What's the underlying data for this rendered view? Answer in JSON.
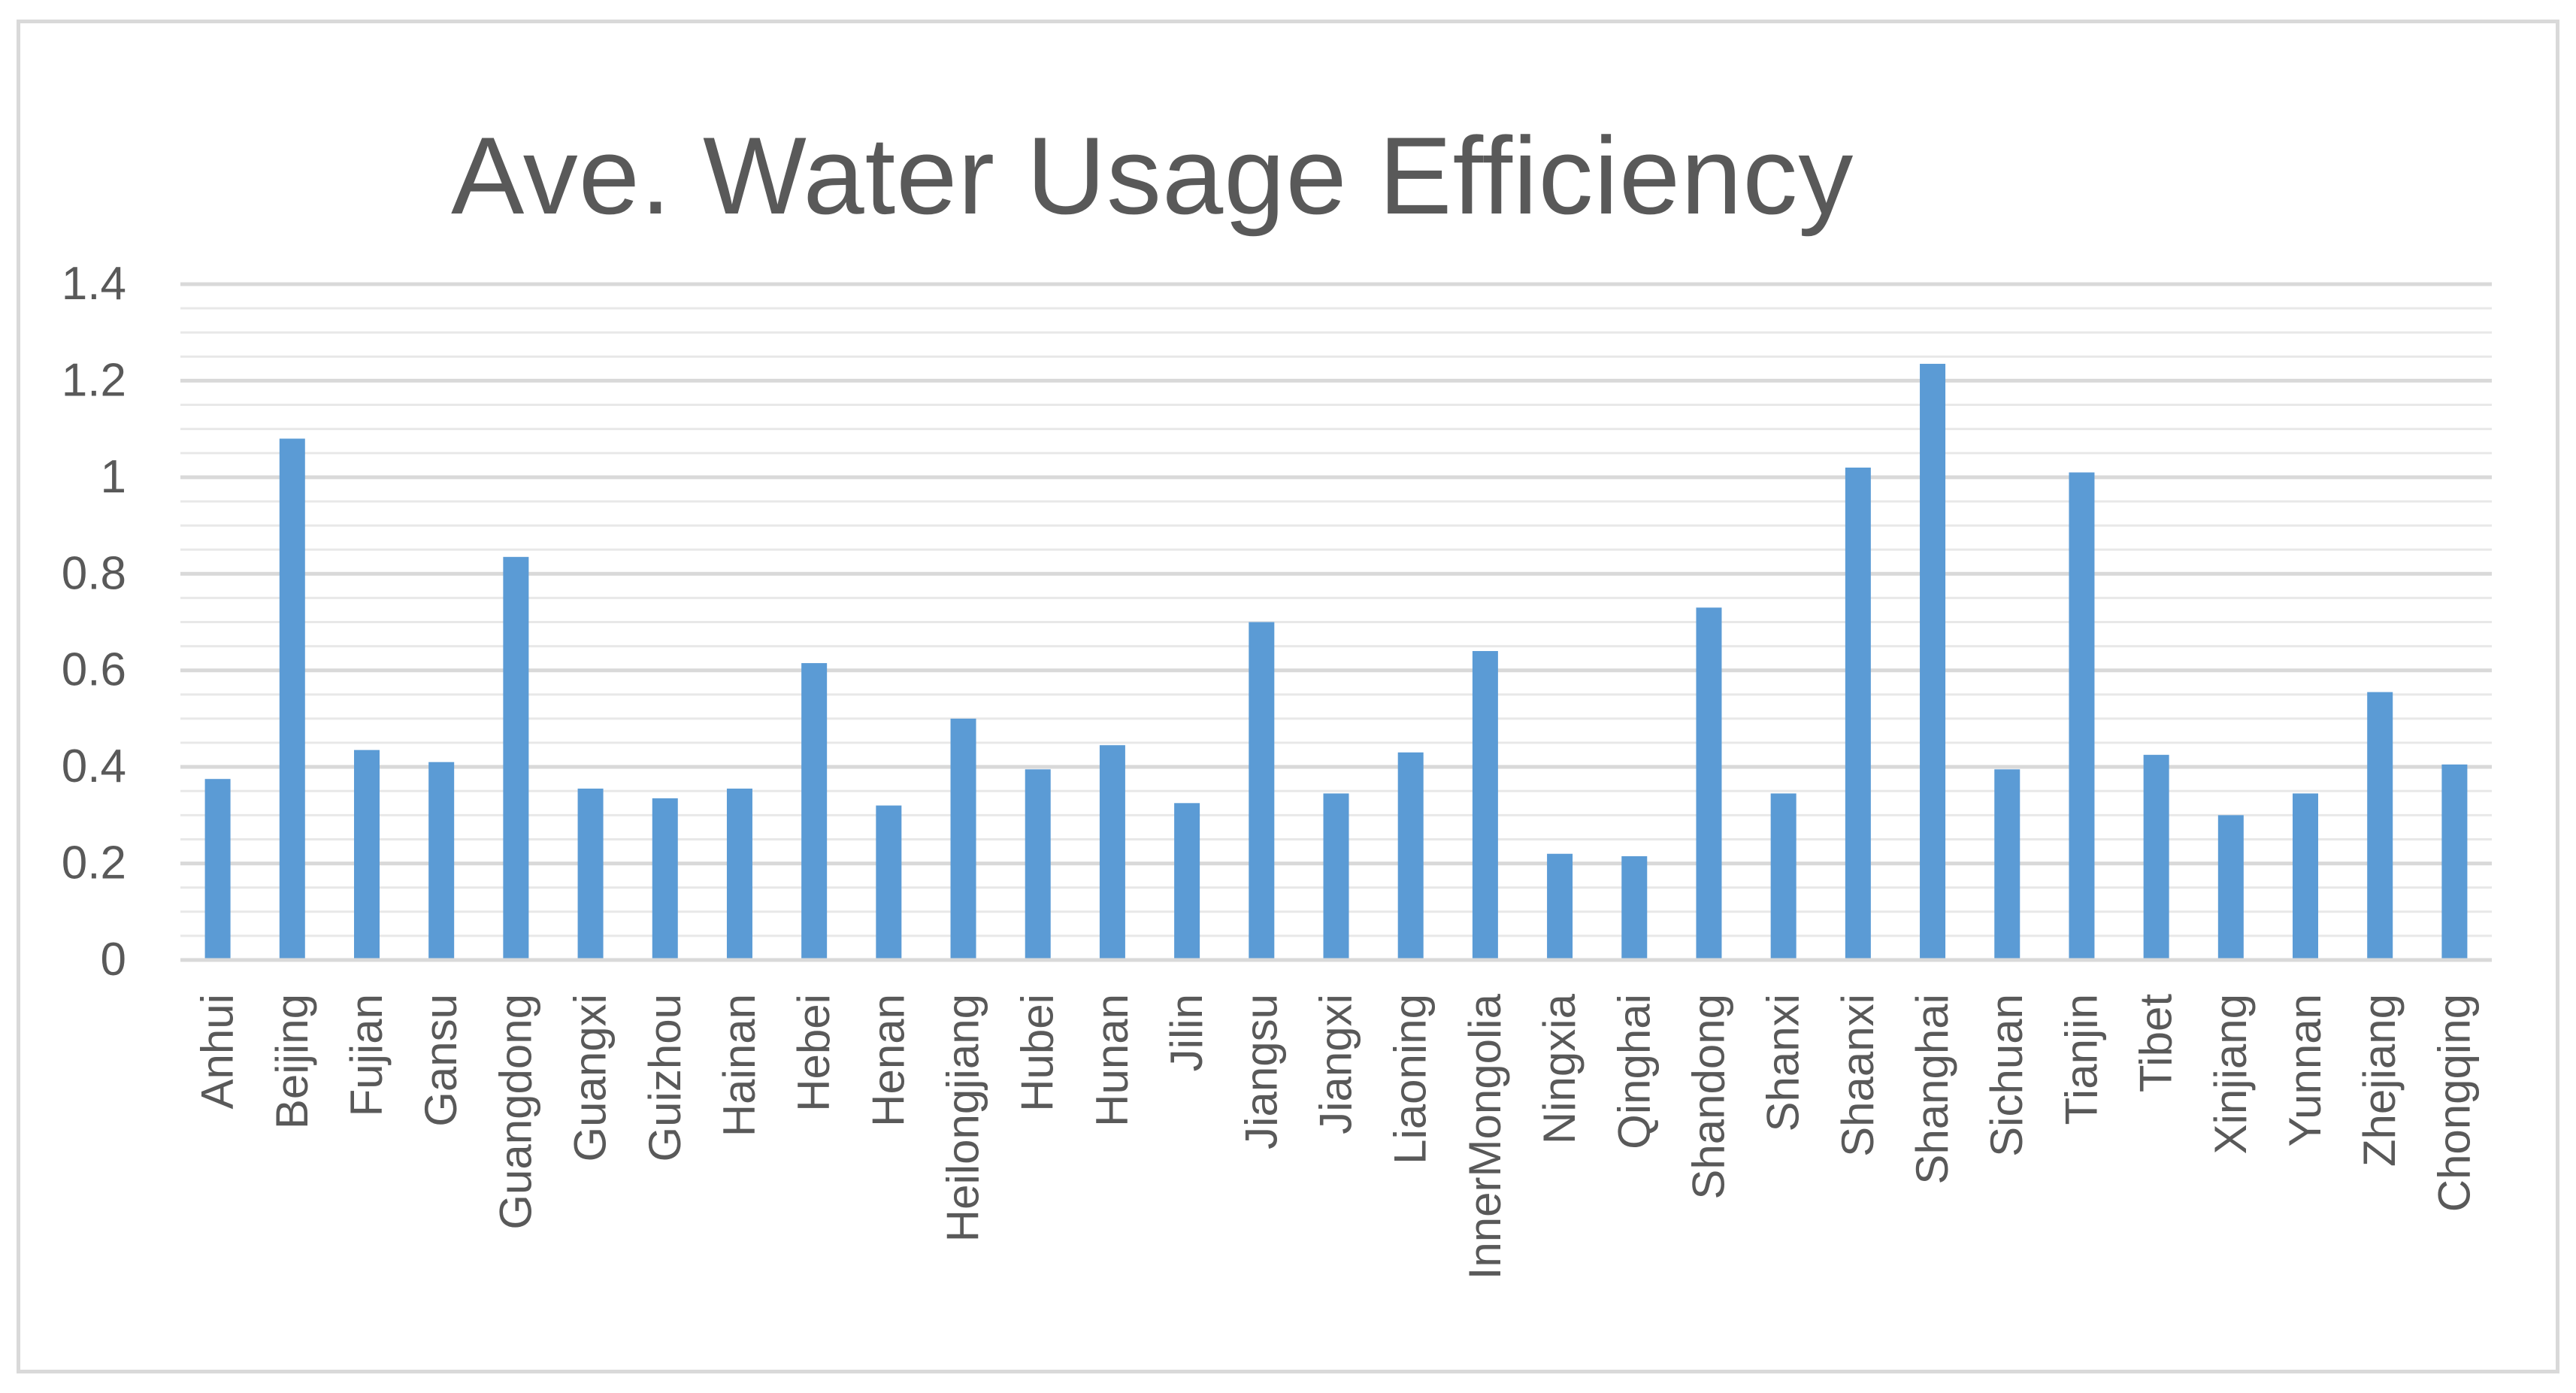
{
  "chart_data": {
    "type": "bar",
    "title": "Ave. Water Usage Efficiency",
    "xlabel": "",
    "ylabel": "",
    "ylim": [
      0,
      1.4
    ],
    "yticks": [
      "0",
      "0.2",
      "0.4",
      "0.6",
      "0.8",
      "1",
      "1.2",
      "1.4"
    ],
    "grid": true,
    "legend": "none",
    "bar_color": "#5b9bd5",
    "grid_color": "#d9d9d9",
    "text_color": "#595959",
    "categories": [
      "Anhui",
      "Beijing",
      "Fujian",
      "Gansu",
      "Guangdong",
      "Guangxi",
      "Guizhou",
      "Hainan",
      "Hebei",
      "Henan",
      "Heilongjiang",
      "Hubei",
      "Hunan",
      "Jilin",
      "Jiangsu",
      "Jiangxi",
      "Liaoning",
      "InnerMongolia",
      "Ningxia",
      "Qinghai",
      "Shandong",
      "Shanxi",
      "Shaanxi",
      "Shanghai",
      "Sichuan",
      "Tianjin",
      "Tibet",
      "Xinjiang",
      "Yunnan",
      "Zhejiang",
      "Chongqing"
    ],
    "values": [
      0.375,
      1.08,
      0.435,
      0.41,
      0.835,
      0.355,
      0.335,
      0.355,
      0.615,
      0.32,
      0.5,
      0.395,
      0.445,
      0.325,
      0.7,
      0.345,
      0.43,
      0.64,
      0.22,
      0.215,
      0.73,
      0.345,
      1.02,
      1.235,
      0.395,
      1.01,
      0.425,
      0.3,
      0.345,
      0.555,
      0.405
    ]
  }
}
